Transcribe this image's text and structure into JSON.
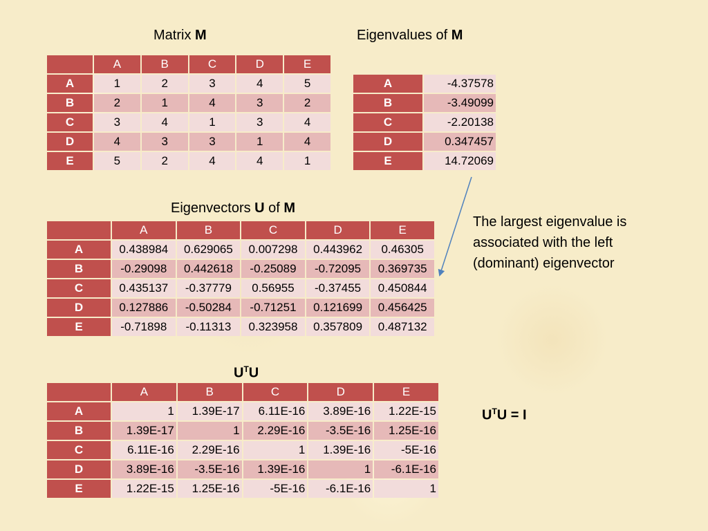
{
  "titles": {
    "matrix_prefix": "Matrix ",
    "matrix_name": "M",
    "eigenvalues_prefix": "Eigenvalues of ",
    "eigenvalues_name": "M",
    "eigenvectors_prefix": "Eigenvectors ",
    "eigenvectors_u": "U",
    "eigenvectors_of": " of ",
    "eigenvectors_name": "M",
    "utu_base": "U",
    "utu_sup": "T",
    "utu_tail": "U"
  },
  "matrix": {
    "columns": [
      "A",
      "B",
      "C",
      "D",
      "E"
    ],
    "rows": [
      {
        "label": "A",
        "values": [
          "1",
          "2",
          "3",
          "4",
          "5"
        ]
      },
      {
        "label": "B",
        "values": [
          "2",
          "1",
          "4",
          "3",
          "2"
        ]
      },
      {
        "label": "C",
        "values": [
          "3",
          "4",
          "1",
          "3",
          "4"
        ]
      },
      {
        "label": "D",
        "values": [
          "4",
          "3",
          "3",
          "1",
          "4"
        ]
      },
      {
        "label": "E",
        "values": [
          "5",
          "2",
          "4",
          "4",
          "1"
        ]
      }
    ]
  },
  "eigenvalues": {
    "rows": [
      {
        "label": "A",
        "value": "-4.37578"
      },
      {
        "label": "B",
        "value": "-3.49099"
      },
      {
        "label": "C",
        "value": "-2.20138"
      },
      {
        "label": "D",
        "value": "0.347457"
      },
      {
        "label": "E",
        "value": "14.72069"
      }
    ]
  },
  "eigenvectors": {
    "columns": [
      "A",
      "B",
      "C",
      "D",
      "E"
    ],
    "rows": [
      {
        "label": "A",
        "values": [
          "0.438984",
          "0.629065",
          "0.007298",
          "0.443962",
          "0.46305"
        ]
      },
      {
        "label": "B",
        "values": [
          "-0.29098",
          "0.442618",
          "-0.25089",
          "-0.72095",
          "0.369735"
        ]
      },
      {
        "label": "C",
        "values": [
          "0.435137",
          "-0.37779",
          "0.56955",
          "-0.37455",
          "0.450844"
        ]
      },
      {
        "label": "D",
        "values": [
          "0.127886",
          "-0.50284",
          "-0.71251",
          "0.121699",
          "0.456425"
        ]
      },
      {
        "label": "E",
        "values": [
          "-0.71898",
          "-0.11313",
          "0.323958",
          "0.357809",
          "0.487132"
        ]
      }
    ]
  },
  "utu": {
    "columns": [
      "A",
      "B",
      "C",
      "D",
      "E"
    ],
    "rows": [
      {
        "label": "A",
        "values": [
          "1",
          "1.39E-17",
          "6.11E-16",
          "3.89E-16",
          "1.22E-15"
        ]
      },
      {
        "label": "B",
        "values": [
          "1.39E-17",
          "1",
          "2.29E-16",
          "-3.5E-16",
          "1.25E-16"
        ]
      },
      {
        "label": "C",
        "values": [
          "6.11E-16",
          "2.29E-16",
          "1",
          "1.39E-16",
          "-5E-16"
        ]
      },
      {
        "label": "D",
        "values": [
          "3.89E-16",
          "-3.5E-16",
          "1.39E-16",
          "1",
          "-6.1E-16"
        ]
      },
      {
        "label": "E",
        "values": [
          "1.22E-15",
          "1.25E-16",
          "-5E-16",
          "-6.1E-16",
          "1"
        ]
      }
    ]
  },
  "note": {
    "line1": "The largest eigenvalue is",
    "line2": "associated with the left",
    "line3": "(dominant) eigenvector"
  },
  "formula": {
    "base": "U",
    "sup": "T",
    "rest": "U = I"
  },
  "colors": {
    "header_fill": "#c0504d",
    "cell_light": "#f2dcdb",
    "cell_dark": "#e6b9b8",
    "background": "#f7ecc9",
    "arrow": "#4f81bd"
  }
}
